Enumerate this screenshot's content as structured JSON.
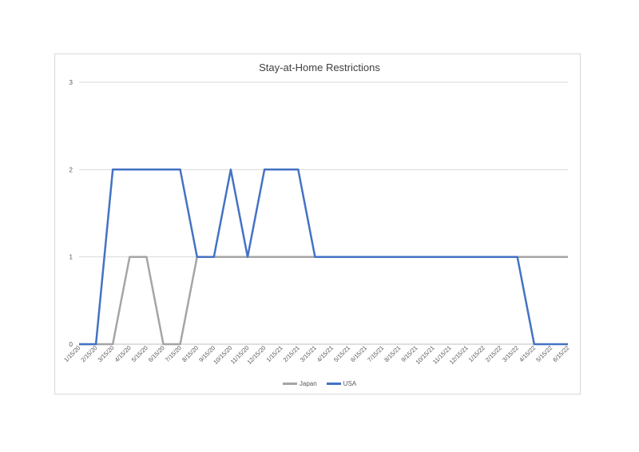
{
  "chart_data": {
    "type": "line",
    "title": "Stay-at-Home Restrictions",
    "xlabel": "",
    "ylabel": "",
    "ylim": [
      0,
      3
    ],
    "yticks": [
      0,
      1,
      2,
      3
    ],
    "grid": true,
    "legend_position": "bottom",
    "categories": [
      "1/15/20",
      "2/15/20",
      "3/15/20",
      "4/15/20",
      "5/15/20",
      "6/15/20",
      "7/15/20",
      "8/15/20",
      "9/15/20",
      "10/15/20",
      "11/15/20",
      "12/15/20",
      "1/15/21",
      "2/15/21",
      "3/15/21",
      "4/15/21",
      "5/15/21",
      "6/15/21",
      "7/15/21",
      "8/15/21",
      "9/15/21",
      "10/15/21",
      "11/15/21",
      "12/15/21",
      "1/15/22",
      "2/15/22",
      "3/15/22",
      "4/15/22",
      "5/15/22",
      "6/15/22"
    ],
    "series": [
      {
        "name": "Japan",
        "color": "#a5a5a5",
        "values": [
          0,
          0,
          0,
          1,
          1,
          0,
          0,
          1,
          1,
          1,
          1,
          1,
          1,
          1,
          1,
          1,
          1,
          1,
          1,
          1,
          1,
          1,
          1,
          1,
          1,
          1,
          1,
          1,
          1,
          1
        ]
      },
      {
        "name": "USA",
        "color": "#4472c4",
        "values": [
          0,
          0,
          2,
          2,
          2,
          2,
          2,
          1,
          1,
          2,
          1,
          2,
          2,
          2,
          1,
          1,
          1,
          1,
          1,
          1,
          1,
          1,
          1,
          1,
          1,
          1,
          1,
          0,
          0,
          0
        ]
      }
    ]
  }
}
